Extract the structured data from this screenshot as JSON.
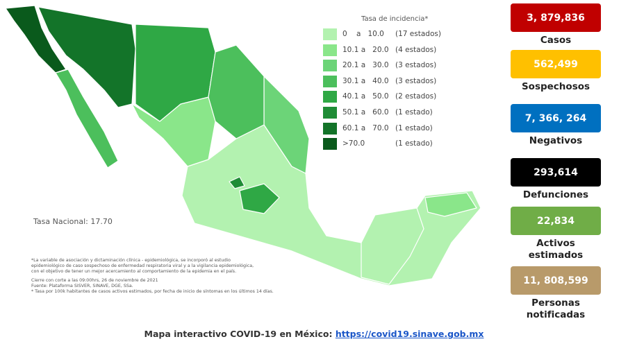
{
  "legend": {
    "title": "Tasa de incidencia*",
    "items": [
      {
        "range": "0    a   10.0",
        "count": "(17 estados)",
        "color": "#b3f2b0"
      },
      {
        "range": "10.1 a   20.0",
        "count": "(4 estados)",
        "color": "#8ae68a"
      },
      {
        "range": "20.1 a   30.0",
        "count": "(3 estados)",
        "color": "#6cd478"
      },
      {
        "range": "30.1 a   40.0",
        "count": "(3 estados)",
        "color": "#4cbf5c"
      },
      {
        "range": "40.1 a   50.0",
        "count": "(2 estados)",
        "color": "#2fa845"
      },
      {
        "range": "50.1 a   60.0",
        "count": "(1 estado)",
        "color": "#1f8c36"
      },
      {
        "range": "60.1 a   70.0",
        "count": "(1 estado)",
        "color": "#137429"
      },
      {
        "range": ">70.0",
        "count": "(1 estado)",
        "color": "#0a5a1c"
      }
    ]
  },
  "national_rate": "Tasa Nacional: 17.70",
  "notes": [
    "*La variable de asociación y dictaminación clínica - epidemiológica, se incorporó al estudio",
    "epidemiológico de caso sospechoso de enfermedad respiratoria viral y a la vigilancia epidemiológica,",
    "con el objetivo de tener un mejor acercamiento al comportamiento de la epidemia en el país.",
    "Cierre con corte a las 09:00hrs, 26 de noviembre de 2021",
    "Fuente: Plataforma SISVER, SINAVE, DGE, SSa.",
    "* Tasa por 100k habitantes de casos activos estimados, por fecha de inicio de síntomas en los últimos 14 días."
  ],
  "stats": [
    {
      "value": "3, 879,836",
      "label": "Casos",
      "color": "#c00000"
    },
    {
      "value": "562,499",
      "label": "Sospechosos",
      "color": "#ffc000"
    },
    {
      "value": "7, 366, 264",
      "label": "Negativos",
      "color": "#0070c0"
    },
    {
      "value": "293,614",
      "label": "Defunciones",
      "color": "#000000"
    },
    {
      "value": "22,834",
      "label": "Activos\nestimados",
      "color": "#70ad47"
    },
    {
      "value": "11, 808,599",
      "label": "Personas\nnotificadas",
      "color": "#b89a6a"
    }
  ],
  "footer": {
    "text": "Mapa interactivo COVID-19 en México:",
    "link": "https://covid19.sinave.gob.mx"
  }
}
